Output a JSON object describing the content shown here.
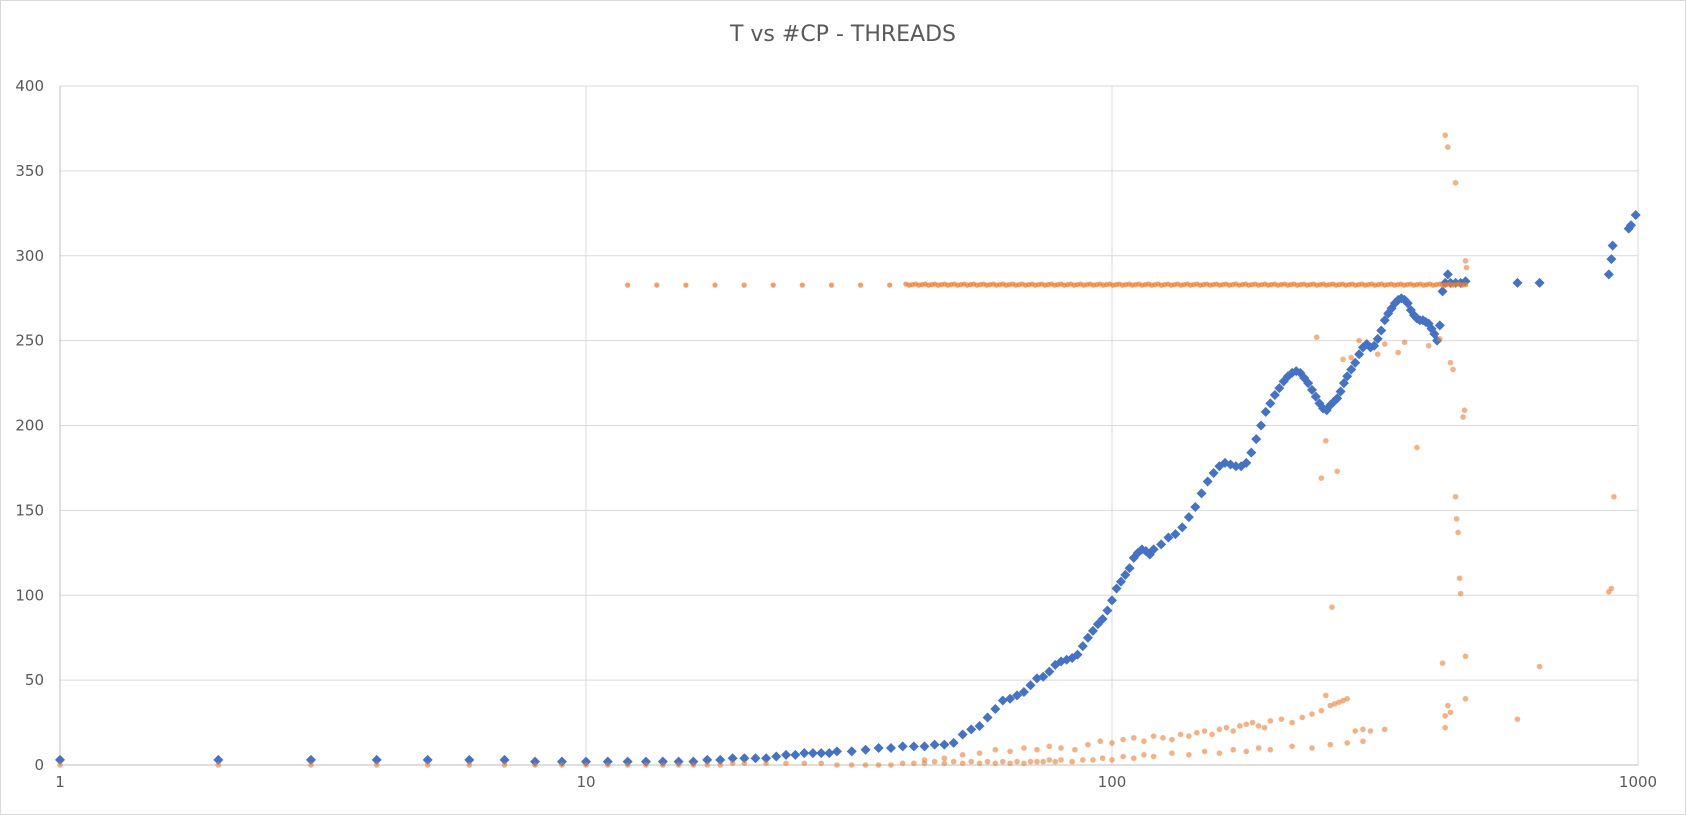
{
  "chart_data": {
    "type": "scatter",
    "title": "T vs #CP - THREADS",
    "xlabel": "",
    "ylabel": "",
    "xscale": "log",
    "xlim": [
      1,
      1000
    ],
    "ylim": [
      0,
      400
    ],
    "x_ticks": [
      1,
      10,
      100,
      1000
    ],
    "x_tick_labels": [
      "1",
      "10",
      "100",
      "1000"
    ],
    "y_ticks": [
      0,
      50,
      100,
      150,
      200,
      250,
      300,
      350,
      400
    ],
    "y_tick_labels": [
      "0",
      "50",
      "100",
      "150",
      "200",
      "250",
      "300",
      "350",
      "400"
    ],
    "grid": true,
    "legend": "none",
    "series": [
      {
        "marker": "diamond",
        "color": "#4472C4",
        "points": [
          [
            1,
            3
          ],
          [
            2,
            3
          ],
          [
            3,
            3
          ],
          [
            4,
            3
          ],
          [
            5,
            3
          ],
          [
            6,
            3
          ],
          [
            7,
            3
          ],
          [
            8,
            2
          ],
          [
            9,
            2
          ],
          [
            10,
            2
          ],
          [
            11,
            2
          ],
          [
            12,
            2
          ],
          [
            13,
            2
          ],
          [
            14,
            2
          ],
          [
            15,
            2
          ],
          [
            16,
            2
          ],
          [
            17,
            3
          ],
          [
            18,
            3
          ],
          [
            19,
            4
          ],
          [
            20,
            4
          ],
          [
            21,
            4
          ],
          [
            22,
            4
          ],
          [
            23,
            5
          ],
          [
            24,
            6
          ],
          [
            25,
            6
          ],
          [
            26,
            7
          ],
          [
            27,
            7
          ],
          [
            28,
            7
          ],
          [
            29,
            7
          ],
          [
            30,
            8
          ],
          [
            32,
            8
          ],
          [
            34,
            9
          ],
          [
            36,
            10
          ],
          [
            38,
            10
          ],
          [
            40,
            11
          ],
          [
            42,
            11
          ],
          [
            44,
            11
          ],
          [
            46,
            12
          ],
          [
            48,
            12
          ],
          [
            50,
            13
          ],
          [
            52,
            18
          ],
          [
            54,
            21
          ],
          [
            56,
            23
          ],
          [
            58,
            28
          ],
          [
            60,
            33
          ],
          [
            62,
            38
          ],
          [
            64,
            39
          ],
          [
            66,
            41
          ],
          [
            68,
            43
          ],
          [
            70,
            47
          ],
          [
            72,
            51
          ],
          [
            74,
            52
          ],
          [
            76,
            55
          ],
          [
            78,
            59
          ],
          [
            80,
            61
          ],
          [
            82,
            62
          ],
          [
            84,
            63
          ],
          [
            86,
            65
          ],
          [
            88,
            70
          ],
          [
            90,
            75
          ],
          [
            92,
            79
          ],
          [
            94,
            83
          ],
          [
            96,
            86
          ],
          [
            98,
            91
          ],
          [
            100,
            97
          ],
          [
            102,
            104
          ],
          [
            104,
            108
          ],
          [
            106,
            112
          ],
          [
            108,
            116
          ],
          [
            110,
            122
          ],
          [
            112,
            125
          ],
          [
            114,
            127
          ],
          [
            116,
            126
          ],
          [
            118,
            124
          ],
          [
            120,
            127
          ],
          [
            124,
            130
          ],
          [
            128,
            134
          ],
          [
            132,
            136
          ],
          [
            136,
            140
          ],
          [
            140,
            146
          ],
          [
            144,
            152
          ],
          [
            148,
            160
          ],
          [
            152,
            167
          ],
          [
            156,
            172
          ],
          [
            160,
            176
          ],
          [
            164,
            178
          ],
          [
            168,
            177
          ],
          [
            172,
            176
          ],
          [
            176,
            176
          ],
          [
            180,
            178
          ],
          [
            184,
            184
          ],
          [
            188,
            192
          ],
          [
            192,
            200
          ],
          [
            196,
            208
          ],
          [
            200,
            213
          ],
          [
            204,
            218
          ],
          [
            208,
            222
          ],
          [
            212,
            226
          ],
          [
            216,
            229
          ],
          [
            220,
            231
          ],
          [
            224,
            232
          ],
          [
            228,
            231
          ],
          [
            232,
            228
          ],
          [
            236,
            225
          ],
          [
            240,
            221
          ],
          [
            244,
            217
          ],
          [
            248,
            213
          ],
          [
            252,
            210
          ],
          [
            256,
            209
          ],
          [
            260,
            212
          ],
          [
            264,
            214
          ],
          [
            268,
            216
          ],
          [
            272,
            220
          ],
          [
            276,
            225
          ],
          [
            280,
            229
          ],
          [
            285,
            233
          ],
          [
            290,
            237
          ],
          [
            295,
            242
          ],
          [
            300,
            246
          ],
          [
            305,
            248
          ],
          [
            310,
            246
          ],
          [
            315,
            247
          ],
          [
            320,
            251
          ],
          [
            325,
            256
          ],
          [
            330,
            262
          ],
          [
            335,
            266
          ],
          [
            340,
            269
          ],
          [
            345,
            272
          ],
          [
            350,
            274
          ],
          [
            355,
            275
          ],
          [
            360,
            274
          ],
          [
            365,
            272
          ],
          [
            370,
            268
          ],
          [
            375,
            265
          ],
          [
            380,
            263
          ],
          [
            385,
            262
          ],
          [
            390,
            262
          ],
          [
            395,
            261
          ],
          [
            400,
            260
          ],
          [
            405,
            257
          ],
          [
            410,
            254
          ],
          [
            415,
            250
          ],
          [
            420,
            259
          ],
          [
            425,
            279
          ],
          [
            430,
            284
          ],
          [
            435,
            289
          ],
          [
            440,
            284
          ],
          [
            450,
            284
          ],
          [
            460,
            284
          ],
          [
            470,
            285
          ],
          [
            590,
            284
          ],
          [
            650,
            284
          ],
          [
            880,
            289
          ],
          [
            890,
            298
          ],
          [
            895,
            306
          ],
          [
            960,
            316
          ],
          [
            970,
            318
          ],
          [
            990,
            324
          ]
        ]
      },
      {
        "marker": "circle",
        "color": "#ED7D31",
        "points": [
          [
            1,
            0
          ],
          [
            2,
            0
          ],
          [
            3,
            0
          ],
          [
            4,
            0
          ],
          [
            5,
            0
          ],
          [
            6,
            0
          ],
          [
            7,
            0
          ],
          [
            8,
            0
          ],
          [
            9,
            0
          ],
          [
            10,
            0
          ],
          [
            11,
            0
          ],
          [
            12,
            0
          ],
          [
            13,
            0
          ],
          [
            14,
            0
          ],
          [
            15,
            0
          ],
          [
            16,
            0
          ],
          [
            17,
            0
          ],
          [
            18,
            0
          ],
          [
            19,
            1
          ],
          [
            20,
            1
          ],
          [
            22,
            1
          ],
          [
            24,
            1
          ],
          [
            26,
            1
          ],
          [
            28,
            1
          ],
          [
            30,
            0
          ],
          [
            32,
            0
          ],
          [
            34,
            0
          ],
          [
            36,
            0
          ],
          [
            38,
            0
          ],
          [
            40,
            1
          ],
          [
            42,
            1
          ],
          [
            44,
            1
          ],
          [
            46,
            2
          ],
          [
            48,
            1
          ],
          [
            50,
            2
          ],
          [
            52,
            1
          ],
          [
            54,
            2
          ],
          [
            56,
            1
          ],
          [
            58,
            2
          ],
          [
            60,
            1
          ],
          [
            62,
            2
          ],
          [
            64,
            1
          ],
          [
            66,
            2
          ],
          [
            68,
            1
          ],
          [
            70,
            2
          ],
          [
            72,
            2
          ],
          [
            74,
            2
          ],
          [
            76,
            3
          ],
          [
            78,
            2
          ],
          [
            80,
            3
          ],
          [
            84,
            2
          ],
          [
            88,
            3
          ],
          [
            92,
            3
          ],
          [
            96,
            4
          ],
          [
            100,
            3
          ],
          [
            105,
            5
          ],
          [
            110,
            4
          ],
          [
            115,
            6
          ],
          [
            120,
            5
          ],
          [
            130,
            7
          ],
          [
            140,
            6
          ],
          [
            150,
            8
          ],
          [
            160,
            7
          ],
          [
            170,
            9
          ],
          [
            180,
            8
          ],
          [
            190,
            10
          ],
          [
            200,
            9
          ],
          [
            220,
            11
          ],
          [
            240,
            10
          ],
          [
            260,
            12
          ],
          [
            280,
            13
          ],
          [
            300,
            14
          ],
          [
            44,
            3
          ],
          [
            48,
            4
          ],
          [
            52,
            6
          ],
          [
            56,
            7
          ],
          [
            60,
            9
          ],
          [
            64,
            8
          ],
          [
            68,
            10
          ],
          [
            72,
            9
          ],
          [
            76,
            11
          ],
          [
            80,
            10
          ],
          [
            85,
            9
          ],
          [
            90,
            12
          ],
          [
            95,
            14
          ],
          [
            100,
            13
          ],
          [
            105,
            15
          ],
          [
            110,
            16
          ],
          [
            115,
            14
          ],
          [
            120,
            17
          ],
          [
            125,
            16
          ],
          [
            130,
            15
          ],
          [
            135,
            18
          ],
          [
            140,
            17
          ],
          [
            145,
            19
          ],
          [
            150,
            20
          ],
          [
            155,
            18
          ],
          [
            160,
            21
          ],
          [
            165,
            22
          ],
          [
            170,
            20
          ],
          [
            175,
            23
          ],
          [
            180,
            24
          ],
          [
            185,
            25
          ],
          [
            190,
            23
          ],
          [
            195,
            22
          ],
          [
            200,
            26
          ],
          [
            210,
            27
          ],
          [
            220,
            25
          ],
          [
            230,
            28
          ],
          [
            240,
            30
          ],
          [
            250,
            32
          ],
          [
            255,
            41
          ],
          [
            260,
            35
          ],
          [
            265,
            36
          ],
          [
            270,
            37
          ],
          [
            275,
            38
          ],
          [
            280,
            39
          ],
          [
            290,
            20
          ],
          [
            300,
            21
          ],
          [
            310,
            20
          ],
          [
            330,
            21
          ],
          [
            430,
            22
          ],
          [
            430,
            29
          ],
          [
            435,
            35
          ],
          [
            425,
            60
          ],
          [
            440,
            31
          ],
          [
            470,
            39
          ],
          [
            470,
            64
          ],
          [
            590,
            27
          ],
          [
            650,
            58
          ],
          [
            245,
            252
          ],
          [
            250,
            169
          ],
          [
            255,
            191
          ],
          [
            262,
            93
          ],
          [
            268,
            173
          ],
          [
            275,
            239
          ],
          [
            285,
            240
          ],
          [
            295,
            250
          ],
          [
            320,
            242
          ],
          [
            330,
            248
          ],
          [
            350,
            243
          ],
          [
            360,
            249
          ],
          [
            380,
            187
          ],
          [
            400,
            247
          ],
          [
            420,
            251
          ],
          [
            440,
            237
          ],
          [
            445,
            233
          ],
          [
            450,
            158
          ],
          [
            452,
            145
          ],
          [
            455,
            137
          ],
          [
            458,
            110
          ],
          [
            460,
            101
          ],
          [
            465,
            205
          ],
          [
            468,
            209
          ],
          [
            470,
            297
          ],
          [
            472,
            293
          ],
          [
            430,
            371
          ],
          [
            435,
            364
          ],
          [
            450,
            343
          ],
          [
            880,
            102
          ],
          [
            890,
            104
          ],
          [
            900,
            158
          ]
        ],
        "band": {
          "value": 283,
          "x_from": 12,
          "x_to": 470
        }
      }
    ]
  }
}
